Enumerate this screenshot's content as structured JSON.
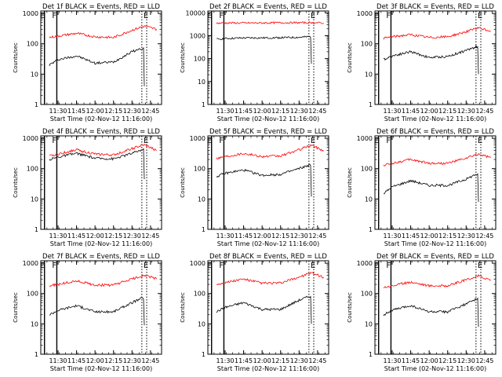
{
  "chart_data": [
    {
      "type": "line",
      "title": "Det 1f BLACK = Events, RED = LLD",
      "xlabel": "Start Time (02-Nov-12 11:16:00)",
      "ylabel": "Counts/sec",
      "x_ticks": [
        "11:30",
        "11:45",
        "12:00",
        "12:15",
        "12:30",
        "12:45"
      ],
      "y_ticks": [
        "1",
        "10",
        "100",
        "1000"
      ],
      "y_scale": "log",
      "ylim": [
        1,
        1200
      ],
      "xlim": [
        "11:16",
        "12:54"
      ],
      "markers": [
        {
          "label": "E",
          "time": "11:19"
        },
        {
          "label": "F",
          "time": "11:29"
        }
      ],
      "marker_E2": "12:38",
      "series": [
        {
          "color": "#000000",
          "x": [
            "11:23",
            "11:30",
            "11:45",
            "12:00",
            "12:15",
            "12:30",
            "12:38",
            "12:40"
          ],
          "y": [
            20,
            30,
            40,
            23,
            25,
            55,
            70,
            4
          ]
        },
        {
          "color": "#ff0000",
          "x": [
            "11:23",
            "11:30",
            "11:45",
            "12:00",
            "12:15",
            "12:30",
            "12:40",
            "12:50"
          ],
          "y": [
            160,
            180,
            220,
            170,
            160,
            280,
            380,
            300
          ]
        }
      ]
    },
    {
      "type": "line",
      "title": "Det 2f BLACK = Events, RED = LLD",
      "xlabel": "Start Time (02-Nov-12 11:16:00)",
      "ylabel": "Counts/sec",
      "x_ticks": [
        "11:30",
        "11:45",
        "12:00",
        "12:15",
        "12:30",
        "12:45"
      ],
      "y_ticks": [
        "1",
        "10",
        "100",
        "1000",
        "10000"
      ],
      "y_scale": "log",
      "ylim": [
        1,
        12000
      ],
      "xlim": [
        "11:16",
        "12:54"
      ],
      "markers": [
        {
          "label": "E",
          "time": "11:19"
        },
        {
          "label": "F",
          "time": "11:29"
        }
      ],
      "marker_E2": "12:38",
      "series": [
        {
          "color": "#000000",
          "x": [
            "11:23",
            "11:30",
            "11:45",
            "12:00",
            "12:15",
            "12:30",
            "12:38",
            "12:40"
          ],
          "y": [
            700,
            750,
            800,
            800,
            820,
            850,
            900,
            60
          ]
        },
        {
          "color": "#ff0000",
          "x": [
            "11:23",
            "11:30",
            "11:45",
            "12:00",
            "12:15",
            "12:30",
            "12:40",
            "12:50"
          ],
          "y": [
            3500,
            3600,
            3600,
            3600,
            3700,
            3700,
            3700,
            3600
          ]
        }
      ]
    },
    {
      "type": "line",
      "title": "Det 3f BLACK = Events, RED = LLD",
      "xlabel": "Start Time (02-Nov-12 11:16:00)",
      "ylabel": "Counts/sec",
      "x_ticks": [
        "11:30",
        "11:45",
        "12:00",
        "12:15",
        "12:30",
        "12:45"
      ],
      "y_ticks": [
        "1",
        "10",
        "100",
        "1000"
      ],
      "y_scale": "log",
      "ylim": [
        1,
        1200
      ],
      "xlim": [
        "11:16",
        "12:54"
      ],
      "markers": [
        {
          "label": "E",
          "time": "11:19"
        },
        {
          "label": "F",
          "time": "11:29"
        }
      ],
      "marker_E2": "12:38",
      "series": [
        {
          "color": "#000000",
          "x": [
            "11:23",
            "11:30",
            "11:45",
            "12:00",
            "12:15",
            "12:30",
            "12:38",
            "12:40"
          ],
          "y": [
            30,
            40,
            55,
            35,
            38,
            60,
            80,
            10
          ]
        },
        {
          "color": "#ff0000",
          "x": [
            "11:23",
            "11:30",
            "11:45",
            "12:00",
            "12:15",
            "12:30",
            "12:40",
            "12:50"
          ],
          "y": [
            150,
            170,
            200,
            160,
            170,
            250,
            330,
            260
          ]
        }
      ]
    },
    {
      "type": "line",
      "title": "Det 4f BLACK = Events, RED = LLD",
      "xlabel": "Start Time (02-Nov-12 11:16:00)",
      "ylabel": "Counts/sec",
      "x_ticks": [
        "11:30",
        "11:45",
        "12:00",
        "12:15",
        "12:30",
        "12:45"
      ],
      "y_ticks": [
        "1",
        "10",
        "100",
        "1000"
      ],
      "y_scale": "log",
      "ylim": [
        1,
        1200
      ],
      "xlim": [
        "11:16",
        "12:54"
      ],
      "markers": [
        {
          "label": "E",
          "time": "11:19"
        },
        {
          "label": "F",
          "time": "11:29"
        }
      ],
      "marker_E2": "12:38",
      "series": [
        {
          "color": "#000000",
          "x": [
            "11:23",
            "11:30",
            "11:45",
            "12:00",
            "12:15",
            "12:30",
            "12:38",
            "12:40"
          ],
          "y": [
            200,
            240,
            320,
            220,
            210,
            320,
            420,
            45
          ]
        },
        {
          "color": "#ff0000",
          "x": [
            "11:23",
            "11:30",
            "11:45",
            "12:00",
            "12:15",
            "12:30",
            "12:40",
            "12:50"
          ],
          "y": [
            260,
            300,
            420,
            300,
            280,
            460,
            600,
            400
          ]
        }
      ]
    },
    {
      "type": "line",
      "title": "Det 5f BLACK = Events, RED = LLD",
      "xlabel": "Start Time (02-Nov-12 11:16:00)",
      "ylabel": "Counts/sec",
      "x_ticks": [
        "11:30",
        "11:45",
        "12:00",
        "12:15",
        "12:30",
        "12:45"
      ],
      "y_ticks": [
        "1",
        "10",
        "100",
        "1000"
      ],
      "y_scale": "log",
      "ylim": [
        1,
        1200
      ],
      "xlim": [
        "11:16",
        "12:54"
      ],
      "markers": [
        {
          "label": "E",
          "time": "11:19"
        },
        {
          "label": "F",
          "time": "11:29"
        }
      ],
      "marker_E2": "12:38",
      "series": [
        {
          "color": "#000000",
          "x": [
            "11:23",
            "11:30",
            "11:45",
            "12:00",
            "12:15",
            "12:30",
            "12:38",
            "12:40"
          ],
          "y": [
            55,
            70,
            90,
            60,
            65,
            100,
            130,
            12
          ]
        },
        {
          "color": "#ff0000",
          "x": [
            "11:23",
            "11:30",
            "11:45",
            "12:00",
            "12:15",
            "12:30",
            "12:40",
            "12:50"
          ],
          "y": [
            220,
            250,
            320,
            250,
            260,
            420,
            600,
            380
          ]
        }
      ]
    },
    {
      "type": "line",
      "title": "Det 6f BLACK = Events, RED = LLD",
      "xlabel": "Start Time (02-Nov-12 11:16:00)",
      "ylabel": "Counts/sec",
      "x_ticks": [
        "11:30",
        "11:45",
        "12:00",
        "12:15",
        "12:30",
        "12:45"
      ],
      "y_ticks": [
        "1",
        "10",
        "100",
        "1000"
      ],
      "y_scale": "log",
      "ylim": [
        1,
        1200
      ],
      "xlim": [
        "11:16",
        "12:54"
      ],
      "markers": [
        {
          "label": "E",
          "time": "11:19"
        },
        {
          "label": "F",
          "time": "11:29"
        }
      ],
      "marker_E2": "12:38",
      "series": [
        {
          "color": "#000000",
          "x": [
            "11:23",
            "11:30",
            "11:45",
            "12:00",
            "12:15",
            "12:30",
            "12:38",
            "12:40"
          ],
          "y": [
            15,
            25,
            40,
            28,
            28,
            45,
            65,
            8
          ]
        },
        {
          "color": "#ff0000",
          "x": [
            "11:23",
            "11:30",
            "11:45",
            "12:00",
            "12:15",
            "12:30",
            "12:40",
            "12:50"
          ],
          "y": [
            130,
            150,
            200,
            150,
            150,
            220,
            300,
            230
          ]
        }
      ]
    },
    {
      "type": "line",
      "title": "Det 7f BLACK = Events, RED = LLD",
      "xlabel": "Start Time (02-Nov-12 11:16:00)",
      "ylabel": "Counts/sec",
      "x_ticks": [
        "11:30",
        "11:45",
        "12:00",
        "12:15",
        "12:30",
        "12:45"
      ],
      "y_ticks": [
        "1",
        "10",
        "100",
        "1000"
      ],
      "y_scale": "log",
      "ylim": [
        1,
        1200
      ],
      "xlim": [
        "11:16",
        "12:54"
      ],
      "markers": [
        {
          "label": "E",
          "time": "11:19"
        },
        {
          "label": "F",
          "time": "11:29"
        }
      ],
      "marker_E2": "12:38",
      "series": [
        {
          "color": "#000000",
          "x": [
            "11:23",
            "11:30",
            "11:45",
            "12:00",
            "12:15",
            "12:30",
            "12:38",
            "12:40"
          ],
          "y": [
            20,
            28,
            40,
            25,
            25,
            50,
            70,
            9
          ]
        },
        {
          "color": "#ff0000",
          "x": [
            "11:23",
            "11:30",
            "11:45",
            "12:00",
            "12:15",
            "12:30",
            "12:40",
            "12:50"
          ],
          "y": [
            180,
            200,
            260,
            190,
            190,
            300,
            400,
            300
          ]
        }
      ]
    },
    {
      "type": "line",
      "title": "Det 8f BLACK = Events, RED = LLD",
      "xlabel": "Start Time (02-Nov-12 11:16:00)",
      "ylabel": "Counts/sec",
      "x_ticks": [
        "11:30",
        "11:45",
        "12:00",
        "12:15",
        "12:30",
        "12:45"
      ],
      "y_ticks": [
        "1",
        "10",
        "100",
        "1000"
      ],
      "y_scale": "log",
      "ylim": [
        1,
        1200
      ],
      "xlim": [
        "11:16",
        "12:54"
      ],
      "markers": [
        {
          "label": "E",
          "time": "11:19"
        },
        {
          "label": "F",
          "time": "11:29"
        }
      ],
      "marker_E2": "12:38",
      "series": [
        {
          "color": "#000000",
          "x": [
            "11:23",
            "11:30",
            "11:45",
            "12:00",
            "12:15",
            "12:30",
            "12:38",
            "12:40"
          ],
          "y": [
            25,
            35,
            50,
            30,
            30,
            60,
            80,
            10
          ]
        },
        {
          "color": "#ff0000",
          "x": [
            "11:23",
            "11:30",
            "11:45",
            "12:00",
            "12:15",
            "12:30",
            "12:40",
            "12:50"
          ],
          "y": [
            200,
            230,
            300,
            220,
            220,
            350,
            480,
            340
          ]
        }
      ]
    },
    {
      "type": "line",
      "title": "Det 9f BLACK = Events, RED = LLD",
      "xlabel": "Start Time (02-Nov-12 11:16:00)",
      "ylabel": "Counts/sec",
      "x_ticks": [
        "11:30",
        "11:45",
        "12:00",
        "12:15",
        "12:30",
        "12:45"
      ],
      "y_ticks": [
        "1",
        "10",
        "100",
        "1000"
      ],
      "y_scale": "log",
      "ylim": [
        1,
        1200
      ],
      "xlim": [
        "11:16",
        "12:54"
      ],
      "markers": [
        {
          "label": "E",
          "time": "11:19"
        },
        {
          "label": "F",
          "time": "11:29"
        }
      ],
      "marker_E2": "12:38",
      "series": [
        {
          "color": "#000000",
          "x": [
            "11:23",
            "11:30",
            "11:45",
            "12:00",
            "12:15",
            "12:30",
            "12:38",
            "12:40"
          ],
          "y": [
            20,
            28,
            40,
            25,
            25,
            45,
            65,
            8
          ]
        },
        {
          "color": "#ff0000",
          "x": [
            "11:23",
            "11:30",
            "11:45",
            "12:00",
            "12:15",
            "12:30",
            "12:40",
            "12:50"
          ],
          "y": [
            160,
            180,
            240,
            180,
            180,
            280,
            380,
            280
          ]
        }
      ]
    }
  ]
}
